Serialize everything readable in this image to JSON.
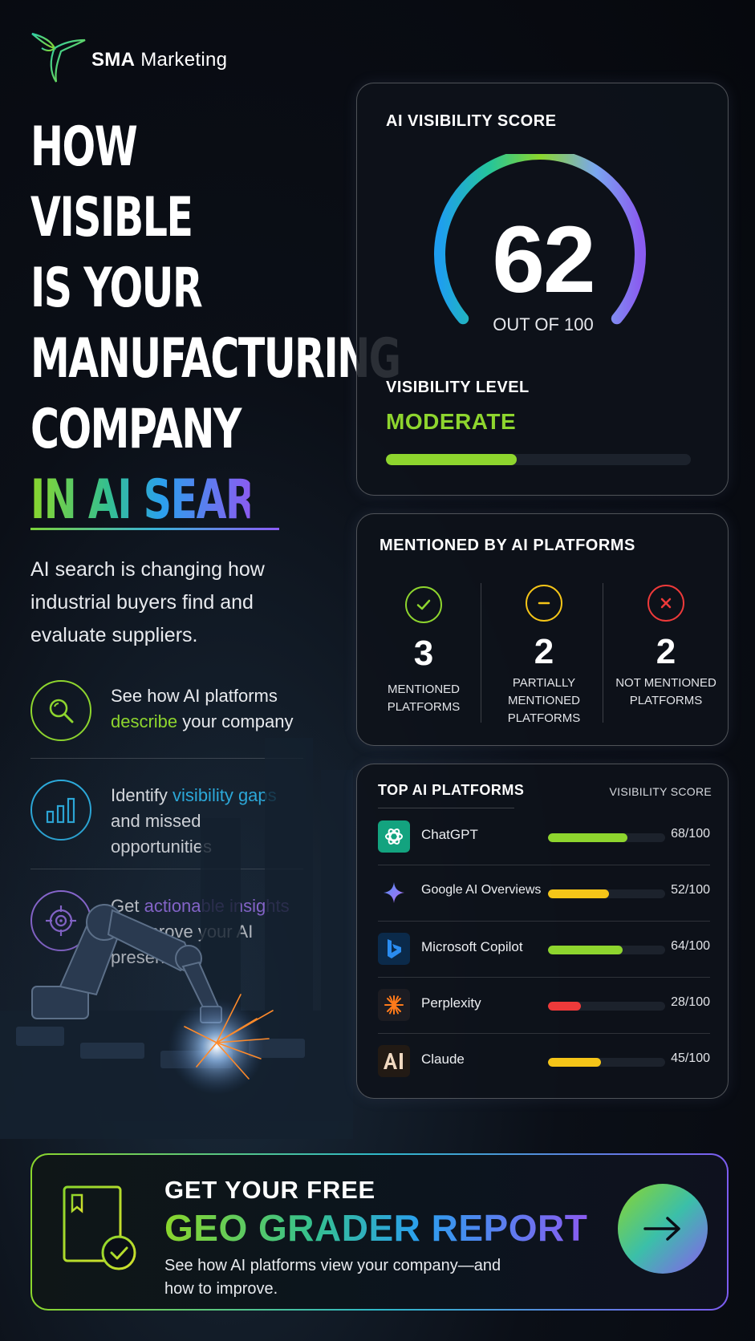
{
  "brand": {
    "name_bold": "SMA",
    "name_rest": " Marketing",
    "logo_icon": "hummingbird-icon"
  },
  "headline": {
    "lines": [
      "HOW",
      "VISIBLE",
      "IS YOUR",
      "MANUFACTURING",
      "COMPANY"
    ],
    "highlight_1": "IN AI",
    "highlight_2": " SEARCH?"
  },
  "intro": "AI search is changing how industrial buyers find and evaluate suppliers.",
  "features": [
    {
      "icon": "magnifier-icon",
      "pre": "See how AI platforms ",
      "hl": "describe",
      "post": " your company"
    },
    {
      "icon": "bar-chart-icon",
      "pre": "Identify ",
      "hl": "visibility gaps",
      "post": " and missed opportunities"
    },
    {
      "icon": "target-icon",
      "pre": "Get ",
      "hl": "actionable insights",
      "post": " to improve your AI presence"
    }
  ],
  "score_card": {
    "title": "AI VISIBILITY SCORE",
    "score": "62",
    "score_value": 62,
    "out_of": "OUT OF 100",
    "level_label": "VISIBILITY LEVEL",
    "level": "MODERATE",
    "level_fraction": 0.43
  },
  "mention_card": {
    "title": "MENTIONED BY AI PLATFORMS",
    "cols": [
      {
        "icon": "check-circle-icon",
        "num": "3",
        "label": "MENTIONED PLATFORMS",
        "color": "#8ed52e"
      },
      {
        "icon": "minus-circle-icon",
        "num": "2",
        "label": "PARTIALLY MENTIONED PLATFORMS",
        "color": "#f5c518"
      },
      {
        "icon": "x-circle-icon",
        "num": "2",
        "label": "NOT MENTIONED PLATFORMS",
        "color": "#ee3a3a"
      }
    ]
  },
  "platform_card": {
    "title": "TOP AI PLATFORMS",
    "score_header": "VISIBILITY SCORE",
    "rows": [
      {
        "name": "ChatGPT",
        "score": "68/100",
        "value": 68,
        "color": "#8ed52e",
        "icon": "chatgpt-icon"
      },
      {
        "name": "Google AI Overviews",
        "score": "52/100",
        "value": 52,
        "color": "#f5c518",
        "icon": "google-sparkle-icon"
      },
      {
        "name": "Microsoft Copilot",
        "score": "64/100",
        "value": 64,
        "color": "#8ed52e",
        "icon": "bing-icon"
      },
      {
        "name": "Perplexity",
        "score": "28/100",
        "value": 28,
        "color": "#ee3a3a",
        "icon": "perplexity-icon"
      },
      {
        "name": "Claude",
        "score": "45/100",
        "value": 45,
        "color": "#f5c518",
        "icon": "claude-icon"
      }
    ]
  },
  "cta": {
    "line1": "GET YOUR FREE",
    "line2": "GEO GRADER REPORT",
    "line3": "See how AI platforms view your company—and how to improve.",
    "icon": "report-check-icon",
    "button_icon": "arrow-right-icon"
  }
}
